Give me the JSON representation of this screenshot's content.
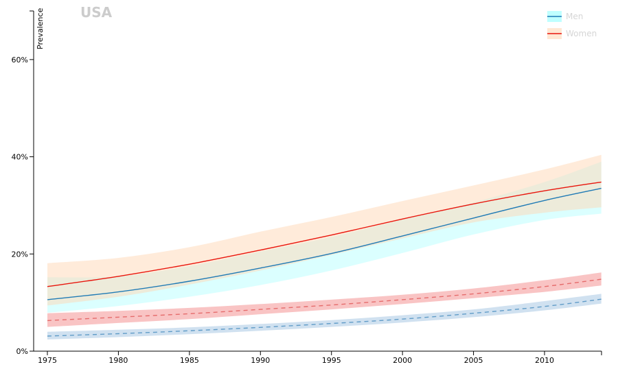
{
  "chart_data": {
    "type": "line",
    "title": "USA",
    "ylabel": "Prevalence",
    "xlabel": "",
    "xlim": [
      1975,
      2014
    ],
    "ylim": [
      0,
      70
    ],
    "x_ticks": [
      1975,
      1980,
      1985,
      1990,
      1995,
      2000,
      2005,
      2010
    ],
    "x_tick_labels": [
      "1975",
      "1980",
      "1985",
      "1990",
      "1995",
      "2000",
      "2005",
      "2010"
    ],
    "y_ticks": [
      0,
      20,
      40,
      60
    ],
    "y_tick_labels": [
      "0%",
      "20%",
      "40%",
      "60%"
    ],
    "grid": false,
    "legend_position": "top-right",
    "legend": [
      {
        "label": "Men",
        "line_color": "#1f7ab5",
        "band_color": "#00ffff"
      },
      {
        "label": "Women",
        "line_color": "#e8150c",
        "band_color": "#ffd7b5"
      }
    ],
    "x": [
      1975,
      1980,
      1985,
      1990,
      1995,
      2000,
      2005,
      2010,
      2014
    ],
    "series": [
      {
        "name": "Men",
        "line_style": "solid",
        "line_color": "#1f7ab5",
        "band_color": "#00ffff",
        "band_opacity": 0.14,
        "values": [
          10.6,
          12.2,
          14.4,
          17.1,
          20.1,
          23.7,
          27.4,
          31.0,
          33.5
        ],
        "lower": [
          7.9,
          9.3,
          11.2,
          13.6,
          16.6,
          20.2,
          24.0,
          27.0,
          28.3
        ],
        "upper": [
          15.2,
          15.4,
          17.5,
          20.5,
          23.5,
          27.1,
          30.6,
          34.8,
          39.0
        ]
      },
      {
        "name": "Women",
        "line_style": "solid",
        "line_color": "#e8150c",
        "band_color": "#ffd7b5",
        "band_opacity": 0.5,
        "values": [
          13.3,
          15.4,
          17.9,
          20.8,
          23.9,
          27.2,
          30.3,
          33.0,
          34.8
        ],
        "lower": [
          9.4,
          11.2,
          13.7,
          16.6,
          19.8,
          23.2,
          26.5,
          28.5,
          29.6
        ],
        "upper": [
          18.1,
          19.2,
          21.4,
          24.6,
          27.6,
          30.9,
          34.1,
          37.4,
          40.4
        ]
      },
      {
        "name": "",
        "line_style": "dashed",
        "line_color": "#e56b6b",
        "band_color": "#f49393",
        "band_opacity": 0.55,
        "values": [
          6.3,
          7.0,
          7.7,
          8.6,
          9.5,
          10.6,
          11.8,
          13.3,
          14.8
        ],
        "lower": [
          5.0,
          5.8,
          6.6,
          7.6,
          8.6,
          9.7,
          10.9,
          12.2,
          13.5
        ],
        "upper": [
          7.8,
          8.3,
          8.9,
          9.7,
          10.6,
          11.6,
          12.9,
          14.6,
          16.2
        ]
      },
      {
        "name": "",
        "line_style": "dashed",
        "line_color": "#5f9bc7",
        "band_color": "#a9c8e4",
        "band_opacity": 0.55,
        "values": [
          3.1,
          3.6,
          4.2,
          4.9,
          5.7,
          6.6,
          7.8,
          9.2,
          10.7
        ],
        "lower": [
          2.4,
          2.9,
          3.5,
          4.2,
          5.0,
          5.9,
          7.0,
          8.4,
          9.8
        ],
        "upper": [
          4.0,
          4.4,
          4.9,
          5.6,
          6.4,
          7.4,
          8.6,
          10.3,
          11.8
        ]
      }
    ]
  }
}
